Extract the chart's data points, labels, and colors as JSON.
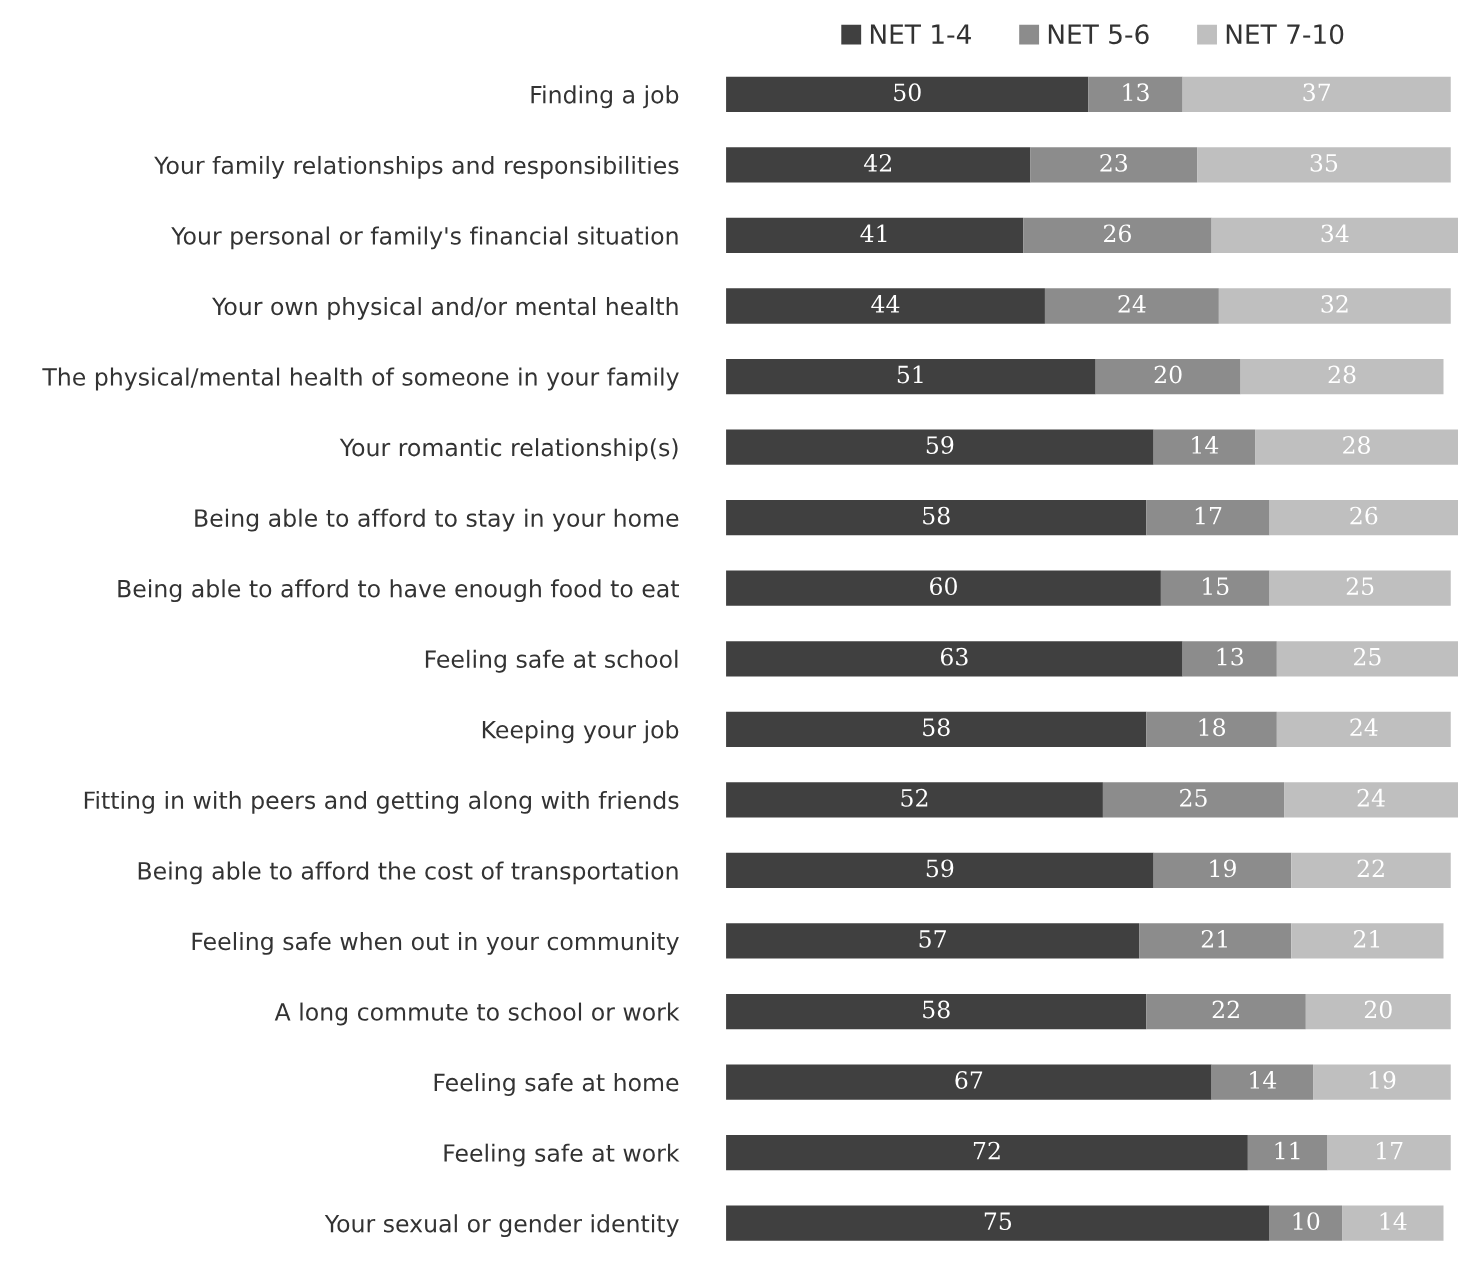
{
  "chart_data": {
    "type": "bar",
    "orientation": "horizontal",
    "stacked": true,
    "data_labels": true,
    "legend": "top",
    "tick_labels": "y",
    "grid": false,
    "xlim": [
      0,
      101
    ],
    "categories": [
      "Finding a job",
      "Your family relationships and responsibilities",
      "Your personal or family's financial situation",
      "Your own physical and/or mental health",
      "The physical/mental health of someone in your family",
      "Your romantic relationship(s)",
      "Being able to afford to stay in your home",
      "Being able to afford to have enough food to eat",
      "Feeling safe at school",
      "Keeping your job",
      "Fitting in with peers and getting along with friends",
      "Being able to afford the cost of transportation",
      "Feeling safe when out in your community",
      "A long commute to school or work",
      "Feeling safe at home",
      "Feeling safe at work",
      "Your sexual or gender identity"
    ],
    "series": [
      {
        "name": "NET 1-4",
        "color": "#404040",
        "values": [
          50,
          42,
          41,
          44,
          51,
          59,
          58,
          60,
          63,
          58,
          52,
          59,
          57,
          58,
          67,
          72,
          75
        ]
      },
      {
        "name": "NET 5-6",
        "color": "#8c8c8c",
        "values": [
          13,
          23,
          26,
          24,
          20,
          14,
          17,
          15,
          13,
          18,
          25,
          19,
          21,
          22,
          14,
          11,
          10
        ]
      },
      {
        "name": "NET 7-10",
        "color": "#bfbfbf",
        "values": [
          37,
          35,
          34,
          32,
          28,
          28,
          26,
          25,
          25,
          24,
          24,
          22,
          21,
          20,
          19,
          17,
          14
        ]
      }
    ]
  }
}
